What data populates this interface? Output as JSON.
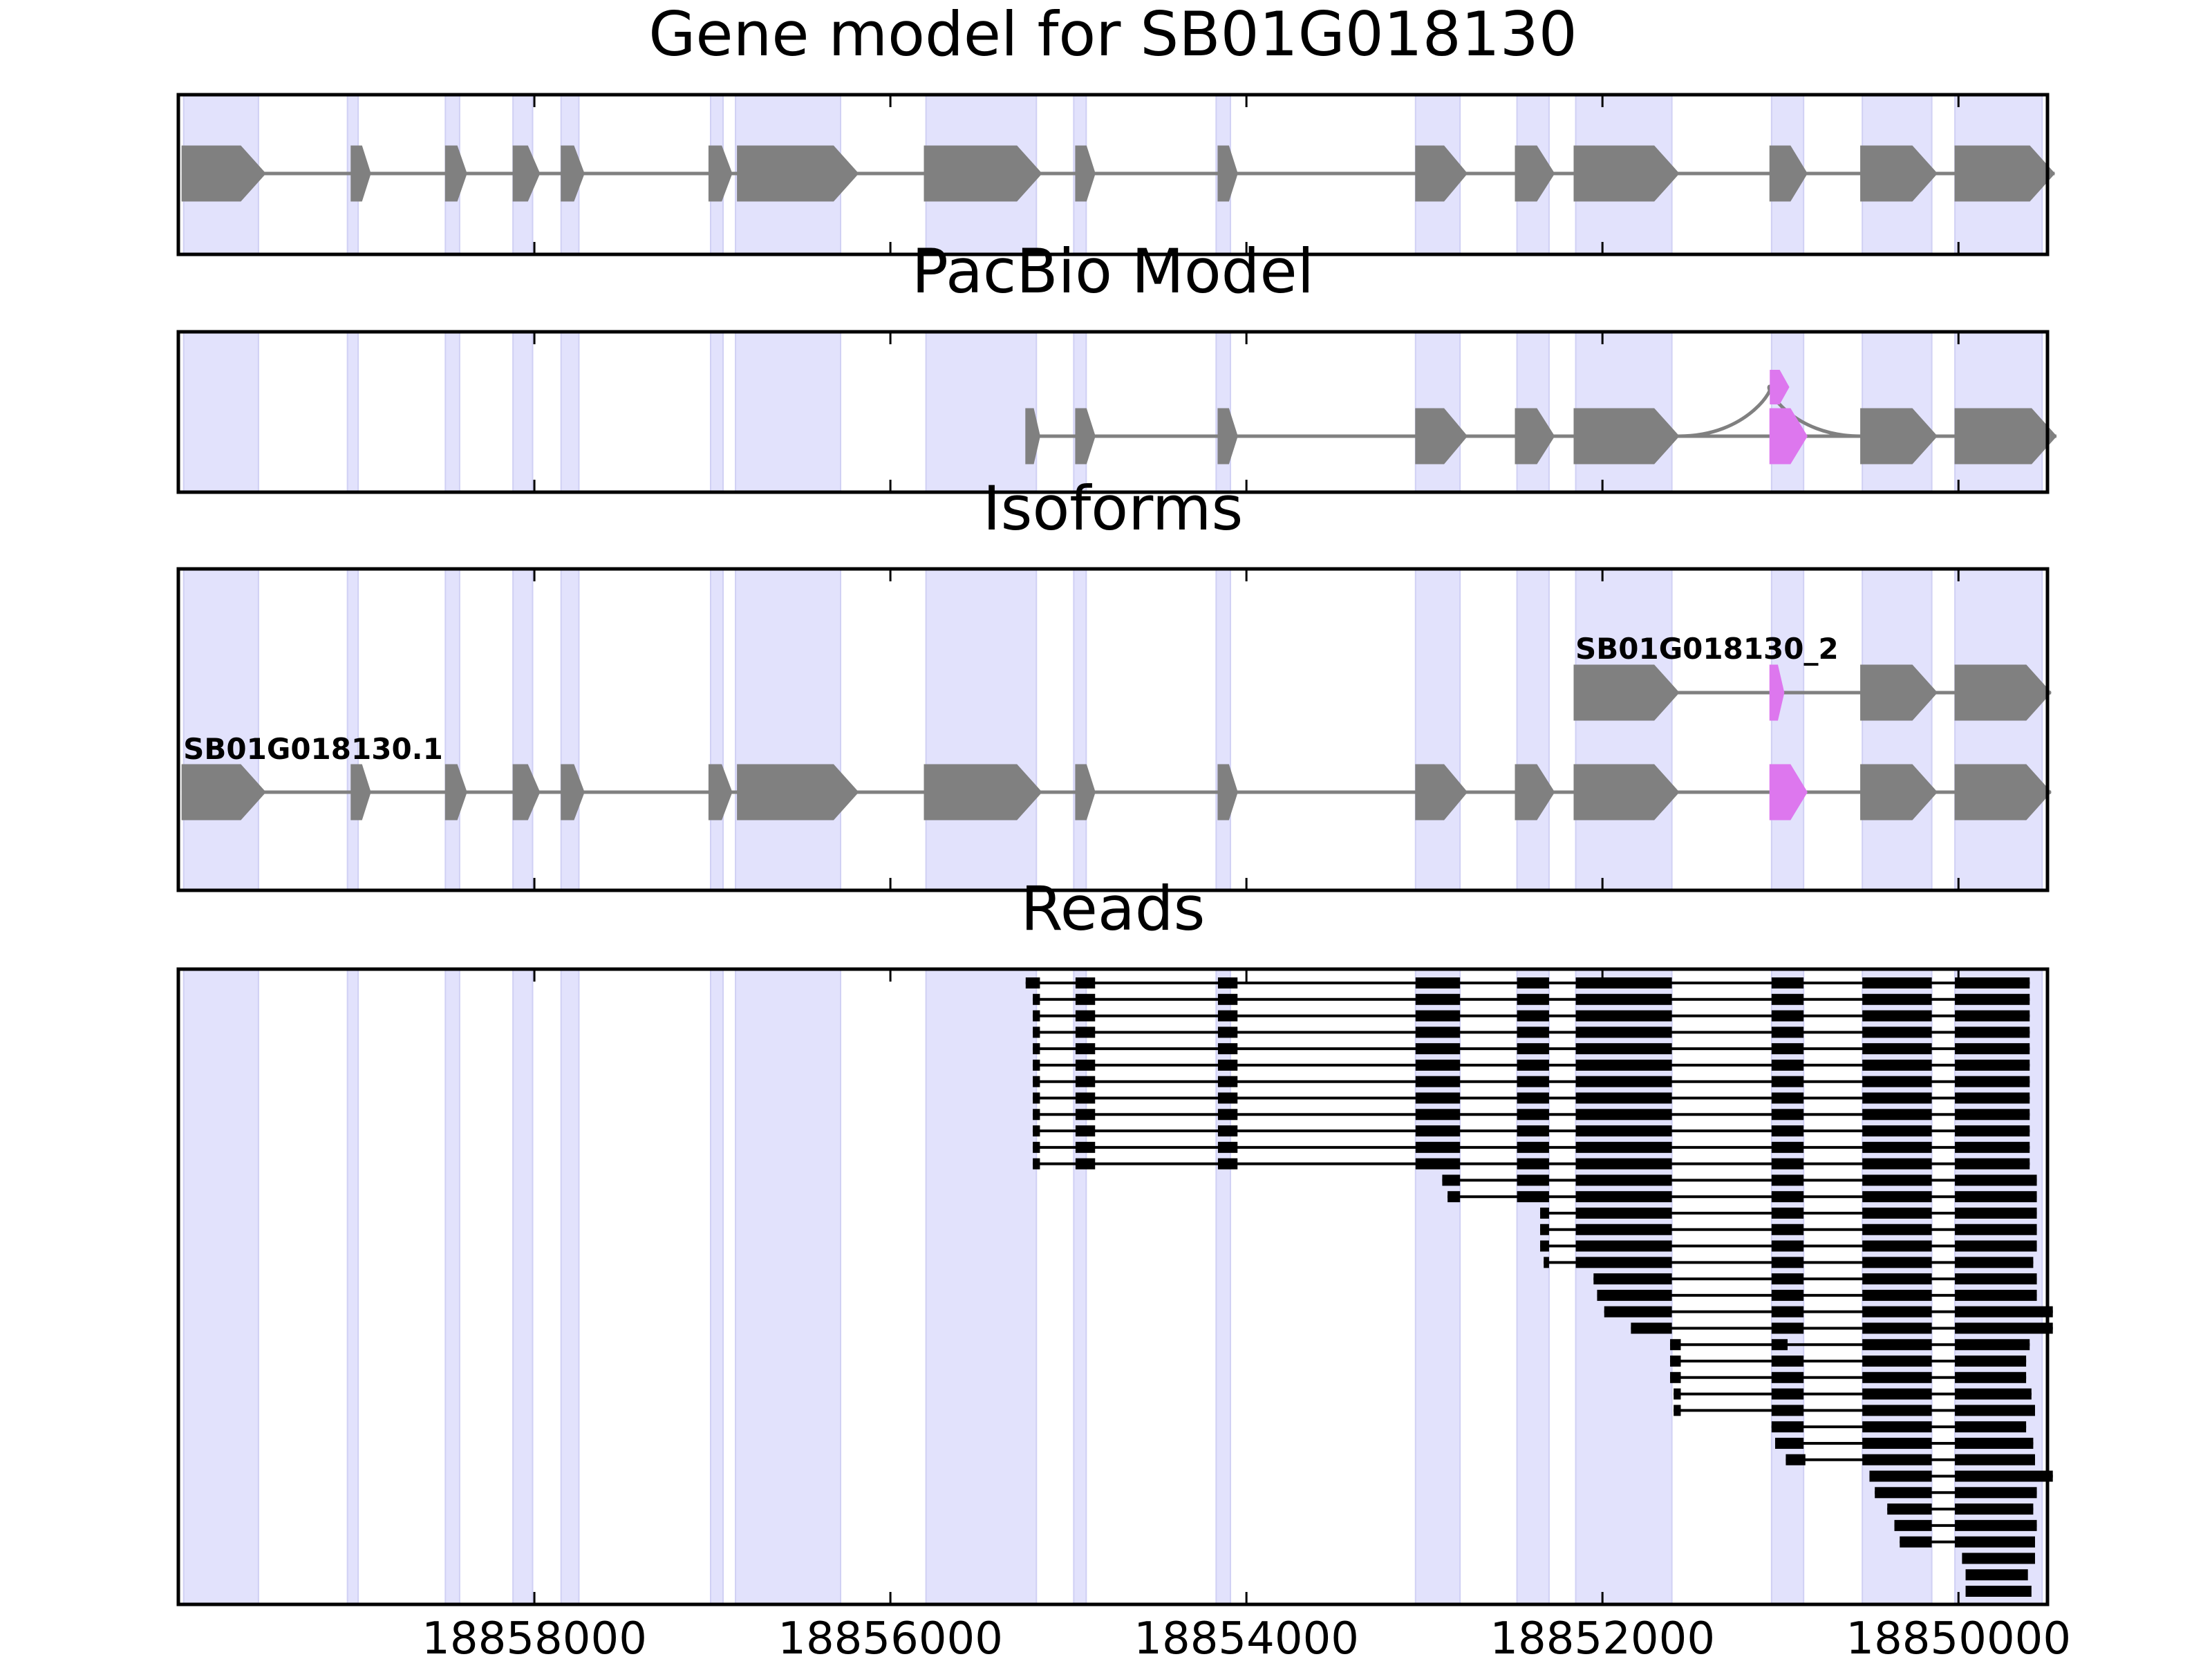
{
  "figure": {
    "axis_range_bp": [
      18860000,
      18849500
    ],
    "x_ticks": [
      18858000,
      18856000,
      18854000,
      18852000,
      18850000
    ],
    "colors": {
      "exon": "#808080",
      "alt_exon": "#dd77ee",
      "exon_band": "#e2e2fc",
      "intron": "#808080",
      "read": "#000000"
    },
    "exon_bands": [
      [
        18859970,
        18859550
      ],
      [
        18859050,
        18858990
      ],
      [
        18858500,
        18858420
      ],
      [
        18858120,
        18858010
      ],
      [
        18857850,
        18857750
      ],
      [
        18857010,
        18856940
      ],
      [
        18856870,
        18856280
      ],
      [
        18855800,
        18855180
      ],
      [
        18854970,
        18854900
      ],
      [
        18854170,
        18854090
      ],
      [
        18853050,
        18852800
      ],
      [
        18852480,
        18852300
      ],
      [
        18852150,
        18851610
      ],
      [
        18851050,
        18850870
      ],
      [
        18850540,
        18850150
      ],
      [
        18850020,
        18849530
      ]
    ]
  },
  "panels": [
    {
      "id": "gene_model",
      "title": "Gene model for SB01G018130",
      "tracks": [
        {
          "label": "",
          "strand": "-",
          "exons": [
            [
              18859980,
              18859510
            ],
            [
              18859030,
              18858920
            ],
            [
              18858500,
              18858380
            ],
            [
              18858120,
              18857970
            ],
            [
              18857850,
              18857720
            ],
            [
              18857020,
              18856890
            ],
            [
              18856860,
              18856180
            ],
            [
              18855810,
              18855150
            ],
            [
              18854960,
              18854850
            ],
            [
              18854160,
              18854050
            ],
            [
              18853050,
              18852760
            ],
            [
              18852490,
              18852270
            ],
            [
              18852160,
              18851570
            ],
            [
              18851060,
              18850850
            ],
            [
              18850550,
              18850120
            ],
            [
              18850020,
              18849460
            ]
          ],
          "alt_exons": []
        }
      ]
    },
    {
      "id": "pacbio_model",
      "title": "PacBio Model",
      "tracks": [
        {
          "label": "",
          "strand": "-",
          "exons": [
            [
              18855240,
              18855160
            ],
            [
              18854960,
              18854850
            ],
            [
              18854160,
              18854050
            ],
            [
              18853050,
              18852760
            ],
            [
              18852490,
              18852270
            ],
            [
              18852160,
              18851570
            ],
            [
              18850550,
              18850120
            ],
            [
              18850020,
              18849450
            ]
          ],
          "alt_exons": [
            [
              18851060,
              18850850
            ]
          ],
          "skip_arc": [
            18851570,
            18850550
          ],
          "arc_exon": [
            18851060,
            18850950
          ]
        }
      ]
    },
    {
      "id": "isoforms",
      "title": "Isoforms",
      "tracks": [
        {
          "label": "SB01G018130_2",
          "strand": "-",
          "exons": [
            [
              18852160,
              18851570
            ],
            [
              18850550,
              18850120
            ],
            [
              18850020,
              18849480
            ]
          ],
          "alt_exons": [
            [
              18851060,
              18850980
            ]
          ]
        },
        {
          "label": "SB01G018130.1",
          "strand": "-",
          "exons": [
            [
              18859980,
              18859510
            ],
            [
              18859030,
              18858920
            ],
            [
              18858500,
              18858380
            ],
            [
              18858120,
              18857970
            ],
            [
              18857850,
              18857720
            ],
            [
              18857020,
              18856890
            ],
            [
              18856860,
              18856180
            ],
            [
              18855810,
              18855150
            ],
            [
              18854960,
              18854850
            ],
            [
              18854160,
              18854050
            ],
            [
              18853050,
              18852760
            ],
            [
              18852490,
              18852270
            ],
            [
              18852160,
              18851570
            ],
            [
              18850550,
              18850120
            ],
            [
              18850020,
              18849480
            ]
          ],
          "alt_exons": [
            [
              18851060,
              18850850
            ]
          ]
        }
      ]
    },
    {
      "id": "reads",
      "title": "Reads",
      "reads": [
        [
          [
            18855240,
            18855160
          ],
          [
            18854960,
            18854850
          ],
          [
            18854160,
            18854050
          ],
          [
            18853050,
            18852800
          ],
          [
            18852480,
            18852300
          ],
          [
            18852150,
            18851610
          ],
          [
            18851050,
            18850870
          ],
          [
            18850540,
            18850150
          ],
          [
            18850020,
            18849600
          ]
        ],
        [
          [
            18855200,
            18855160
          ],
          [
            18854960,
            18854850
          ],
          [
            18854160,
            18854050
          ],
          [
            18853050,
            18852800
          ],
          [
            18852480,
            18852300
          ],
          [
            18852150,
            18851610
          ],
          [
            18851050,
            18850870
          ],
          [
            18850540,
            18850150
          ],
          [
            18850020,
            18849600
          ]
        ],
        [
          [
            18855200,
            18855160
          ],
          [
            18854960,
            18854850
          ],
          [
            18854160,
            18854050
          ],
          [
            18853050,
            18852800
          ],
          [
            18852480,
            18852300
          ],
          [
            18852150,
            18851610
          ],
          [
            18851050,
            18850870
          ],
          [
            18850540,
            18850150
          ],
          [
            18850020,
            18849600
          ]
        ],
        [
          [
            18855200,
            18855160
          ],
          [
            18854960,
            18854850
          ],
          [
            18854160,
            18854050
          ],
          [
            18853050,
            18852800
          ],
          [
            18852480,
            18852300
          ],
          [
            18852150,
            18851610
          ],
          [
            18851050,
            18850870
          ],
          [
            18850540,
            18850150
          ],
          [
            18850020,
            18849600
          ]
        ],
        [
          [
            18855200,
            18855160
          ],
          [
            18854960,
            18854850
          ],
          [
            18854160,
            18854050
          ],
          [
            18853050,
            18852800
          ],
          [
            18852480,
            18852300
          ],
          [
            18852150,
            18851610
          ],
          [
            18851050,
            18850870
          ],
          [
            18850540,
            18850150
          ],
          [
            18850020,
            18849600
          ]
        ],
        [
          [
            18855200,
            18855160
          ],
          [
            18854960,
            18854850
          ],
          [
            18854160,
            18854050
          ],
          [
            18853050,
            18852800
          ],
          [
            18852480,
            18852300
          ],
          [
            18852150,
            18851610
          ],
          [
            18851050,
            18850870
          ],
          [
            18850540,
            18850150
          ],
          [
            18850020,
            18849600
          ]
        ],
        [
          [
            18855200,
            18855160
          ],
          [
            18854960,
            18854850
          ],
          [
            18854160,
            18854050
          ],
          [
            18853050,
            18852800
          ],
          [
            18852480,
            18852300
          ],
          [
            18852150,
            18851610
          ],
          [
            18851050,
            18850870
          ],
          [
            18850540,
            18850150
          ],
          [
            18850020,
            18849600
          ]
        ],
        [
          [
            18855200,
            18855160
          ],
          [
            18854960,
            18854850
          ],
          [
            18854160,
            18854050
          ],
          [
            18853050,
            18852800
          ],
          [
            18852480,
            18852300
          ],
          [
            18852150,
            18851610
          ],
          [
            18851050,
            18850870
          ],
          [
            18850540,
            18850150
          ],
          [
            18850020,
            18849600
          ]
        ],
        [
          [
            18855200,
            18855160
          ],
          [
            18854960,
            18854850
          ],
          [
            18854160,
            18854050
          ],
          [
            18853050,
            18852800
          ],
          [
            18852480,
            18852300
          ],
          [
            18852150,
            18851610
          ],
          [
            18851050,
            18850870
          ],
          [
            18850540,
            18850150
          ],
          [
            18850020,
            18849600
          ]
        ],
        [
          [
            18855200,
            18855160
          ],
          [
            18854960,
            18854850
          ],
          [
            18854160,
            18854050
          ],
          [
            18853050,
            18852800
          ],
          [
            18852480,
            18852300
          ],
          [
            18852150,
            18851610
          ],
          [
            18851050,
            18850870
          ],
          [
            18850540,
            18850150
          ],
          [
            18850020,
            18849600
          ]
        ],
        [
          [
            18855200,
            18855160
          ],
          [
            18854960,
            18854850
          ],
          [
            18854160,
            18854050
          ],
          [
            18853050,
            18852800
          ],
          [
            18852480,
            18852300
          ],
          [
            18852150,
            18851610
          ],
          [
            18851050,
            18850870
          ],
          [
            18850540,
            18850150
          ],
          [
            18850020,
            18849600
          ]
        ],
        [
          [
            18855200,
            18855160
          ],
          [
            18854960,
            18854850
          ],
          [
            18854160,
            18854050
          ],
          [
            18853050,
            18852800
          ],
          [
            18852480,
            18852300
          ],
          [
            18852150,
            18851610
          ],
          [
            18851050,
            18850870
          ],
          [
            18850540,
            18850150
          ],
          [
            18850020,
            18849600
          ]
        ],
        [
          [
            18852900,
            18852800
          ],
          [
            18852480,
            18852300
          ],
          [
            18852150,
            18851610
          ],
          [
            18851050,
            18850870
          ],
          [
            18850540,
            18850150
          ],
          [
            18850020,
            18849560
          ]
        ],
        [
          [
            18852870,
            18852800
          ],
          [
            18852480,
            18852300
          ],
          [
            18852150,
            18851610
          ],
          [
            18851050,
            18850870
          ],
          [
            18850540,
            18850150
          ],
          [
            18850020,
            18849560
          ]
        ],
        [
          [
            18852350,
            18852300
          ],
          [
            18852150,
            18851610
          ],
          [
            18851050,
            18850870
          ],
          [
            18850540,
            18850150
          ],
          [
            18850020,
            18849560
          ]
        ],
        [
          [
            18852350,
            18852300
          ],
          [
            18852150,
            18851610
          ],
          [
            18851050,
            18850870
          ],
          [
            18850540,
            18850150
          ],
          [
            18850020,
            18849560
          ]
        ],
        [
          [
            18852350,
            18852300
          ],
          [
            18852150,
            18851610
          ],
          [
            18851050,
            18850870
          ],
          [
            18850540,
            18850150
          ],
          [
            18850020,
            18849560
          ]
        ],
        [
          [
            18852330,
            18852300
          ],
          [
            18852150,
            18851610
          ],
          [
            18851050,
            18850870
          ],
          [
            18850540,
            18850150
          ],
          [
            18850020,
            18849580
          ]
        ],
        [
          [
            18852050,
            18851610
          ],
          [
            18851050,
            18850870
          ],
          [
            18850540,
            18850150
          ],
          [
            18850020,
            18849560
          ]
        ],
        [
          [
            18852030,
            18851610
          ],
          [
            18851050,
            18850870
          ],
          [
            18850540,
            18850150
          ],
          [
            18850020,
            18849560
          ]
        ],
        [
          [
            18851990,
            18851610
          ],
          [
            18851050,
            18850870
          ],
          [
            18850540,
            18850150
          ],
          [
            18850020,
            18849470
          ]
        ],
        [
          [
            18851840,
            18851610
          ],
          [
            18851050,
            18850870
          ],
          [
            18850540,
            18850150
          ],
          [
            18850020,
            18849470
          ]
        ],
        [
          [
            18851620,
            18851560
          ],
          [
            18851050,
            18850960
          ],
          [
            18850540,
            18850150
          ],
          [
            18850020,
            18849600
          ]
        ],
        [
          [
            18851620,
            18851560
          ],
          [
            18851050,
            18850870
          ],
          [
            18850540,
            18850150
          ],
          [
            18850020,
            18849620
          ]
        ],
        [
          [
            18851620,
            18851560
          ],
          [
            18851050,
            18850870
          ],
          [
            18850540,
            18850150
          ],
          [
            18850020,
            18849620
          ]
        ],
        [
          [
            18851600,
            18851560
          ],
          [
            18851050,
            18850870
          ],
          [
            18850540,
            18850150
          ],
          [
            18850020,
            18849590
          ]
        ],
        [
          [
            18851600,
            18851560
          ],
          [
            18851050,
            18850870
          ],
          [
            18850540,
            18850150
          ],
          [
            18850020,
            18849570
          ]
        ],
        [
          [
            18851050,
            18850870
          ],
          [
            18850540,
            18850150
          ],
          [
            18850020,
            18849620
          ]
        ],
        [
          [
            18851030,
            18850870
          ],
          [
            18850540,
            18850150
          ],
          [
            18850020,
            18849580
          ]
        ],
        [
          [
            18850970,
            18850860
          ],
          [
            18850540,
            18850150
          ],
          [
            18850020,
            18849570
          ]
        ],
        [
          [
            18850500,
            18850150
          ],
          [
            18850020,
            18849470
          ]
        ],
        [
          [
            18850470,
            18850150
          ],
          [
            18850020,
            18849560
          ]
        ],
        [
          [
            18850400,
            18850150
          ],
          [
            18850020,
            18849580
          ]
        ],
        [
          [
            18850360,
            18850150
          ],
          [
            18850020,
            18849560
          ]
        ],
        [
          [
            18850330,
            18850150
          ],
          [
            18850020,
            18849570
          ]
        ],
        [
          [
            18849980,
            18849570
          ]
        ],
        [
          [
            18849960,
            18849610
          ]
        ],
        [
          [
            18849960,
            18849590
          ]
        ]
      ]
    }
  ]
}
